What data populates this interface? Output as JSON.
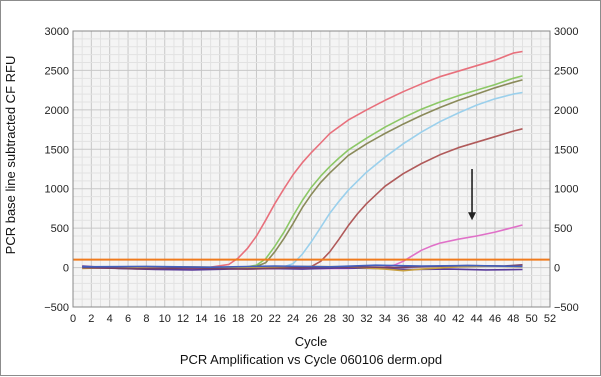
{
  "chart_data": {
    "type": "line",
    "title": "PCR Amplification vs Cycle 060106 derm.opd",
    "xlabel": "Cycle",
    "ylabel": "PCR base line subtracted CF RFU",
    "xlim": [
      0,
      52
    ],
    "ylim": [
      -500,
      3000
    ],
    "x_ticks": [
      0,
      2,
      4,
      6,
      8,
      10,
      12,
      14,
      16,
      18,
      20,
      22,
      24,
      26,
      28,
      30,
      32,
      34,
      36,
      38,
      40,
      42,
      44,
      46,
      48,
      50,
      52
    ],
    "y_ticks": [
      -500,
      0,
      500,
      1000,
      1500,
      2000,
      2500,
      3000
    ],
    "y_axis_right": true,
    "grid": true,
    "threshold": {
      "value": 100,
      "color": "#f07a1c"
    },
    "arrow": {
      "x": 43.5,
      "y_from": 1250,
      "y_to": 600,
      "color": "#222222"
    },
    "colors": {
      "plot_background": "#f4f4f4",
      "grid_major": "#c8c8c8",
      "grid_minor": "#e2e2e2"
    },
    "series": [
      {
        "color": "#e8707c",
        "values": [
          [
            1,
            15
          ],
          [
            4,
            5
          ],
          [
            8,
            0
          ],
          [
            12,
            -5
          ],
          [
            15,
            5
          ],
          [
            17,
            40
          ],
          [
            18,
            120
          ],
          [
            19,
            240
          ],
          [
            20,
            400
          ],
          [
            21,
            600
          ],
          [
            22,
            810
          ],
          [
            23,
            1000
          ],
          [
            24,
            1180
          ],
          [
            25,
            1330
          ],
          [
            26,
            1460
          ],
          [
            27,
            1580
          ],
          [
            28,
            1700
          ],
          [
            30,
            1870
          ],
          [
            32,
            2000
          ],
          [
            34,
            2120
          ],
          [
            36,
            2230
          ],
          [
            38,
            2330
          ],
          [
            40,
            2420
          ],
          [
            42,
            2490
          ],
          [
            44,
            2560
          ],
          [
            46,
            2630
          ],
          [
            48,
            2720
          ],
          [
            49,
            2740
          ]
        ]
      },
      {
        "color": "#8cc866",
        "values": [
          [
            1,
            10
          ],
          [
            6,
            -5
          ],
          [
            12,
            -10
          ],
          [
            16,
            0
          ],
          [
            19,
            10
          ],
          [
            20,
            30
          ],
          [
            21,
            110
          ],
          [
            22,
            270
          ],
          [
            23,
            450
          ],
          [
            24,
            660
          ],
          [
            25,
            850
          ],
          [
            26,
            1020
          ],
          [
            27,
            1160
          ],
          [
            28,
            1280
          ],
          [
            29,
            1390
          ],
          [
            30,
            1490
          ],
          [
            32,
            1640
          ],
          [
            34,
            1780
          ],
          [
            36,
            1900
          ],
          [
            38,
            2010
          ],
          [
            40,
            2100
          ],
          [
            42,
            2180
          ],
          [
            44,
            2250
          ],
          [
            46,
            2320
          ],
          [
            48,
            2400
          ],
          [
            49,
            2430
          ]
        ]
      },
      {
        "color": "#8a8a5a",
        "values": [
          [
            1,
            5
          ],
          [
            8,
            0
          ],
          [
            14,
            -10
          ],
          [
            18,
            0
          ],
          [
            20,
            15
          ],
          [
            21,
            60
          ],
          [
            22,
            200
          ],
          [
            23,
            370
          ],
          [
            24,
            560
          ],
          [
            25,
            760
          ],
          [
            26,
            930
          ],
          [
            27,
            1080
          ],
          [
            28,
            1200
          ],
          [
            30,
            1420
          ],
          [
            32,
            1570
          ],
          [
            34,
            1700
          ],
          [
            36,
            1820
          ],
          [
            38,
            1930
          ],
          [
            40,
            2030
          ],
          [
            42,
            2120
          ],
          [
            44,
            2200
          ],
          [
            46,
            2280
          ],
          [
            48,
            2350
          ],
          [
            49,
            2380
          ]
        ]
      },
      {
        "color": "#9bd0ec",
        "values": [
          [
            1,
            0
          ],
          [
            8,
            -10
          ],
          [
            14,
            -15
          ],
          [
            20,
            -10
          ],
          [
            23,
            10
          ],
          [
            24,
            50
          ],
          [
            25,
            170
          ],
          [
            26,
            330
          ],
          [
            27,
            510
          ],
          [
            28,
            690
          ],
          [
            29,
            840
          ],
          [
            30,
            980
          ],
          [
            32,
            1210
          ],
          [
            34,
            1400
          ],
          [
            36,
            1570
          ],
          [
            38,
            1720
          ],
          [
            40,
            1850
          ],
          [
            42,
            1960
          ],
          [
            44,
            2060
          ],
          [
            46,
            2140
          ],
          [
            48,
            2200
          ],
          [
            49,
            2220
          ]
        ]
      },
      {
        "color": "#b05a5a",
        "values": [
          [
            1,
            0
          ],
          [
            10,
            -10
          ],
          [
            18,
            -15
          ],
          [
            24,
            -10
          ],
          [
            26,
            15
          ],
          [
            27,
            80
          ],
          [
            28,
            200
          ],
          [
            29,
            360
          ],
          [
            30,
            530
          ],
          [
            31,
            680
          ],
          [
            32,
            810
          ],
          [
            34,
            1030
          ],
          [
            36,
            1190
          ],
          [
            38,
            1320
          ],
          [
            40,
            1430
          ],
          [
            42,
            1520
          ],
          [
            44,
            1590
          ],
          [
            46,
            1660
          ],
          [
            48,
            1730
          ],
          [
            49,
            1760
          ]
        ]
      },
      {
        "color": "#e070c8",
        "values": [
          [
            1,
            -5
          ],
          [
            10,
            -10
          ],
          [
            20,
            -15
          ],
          [
            30,
            -10
          ],
          [
            34,
            5
          ],
          [
            35,
            30
          ],
          [
            36,
            80
          ],
          [
            37,
            150
          ],
          [
            38,
            220
          ],
          [
            39,
            270
          ],
          [
            40,
            310
          ],
          [
            42,
            360
          ],
          [
            44,
            400
          ],
          [
            46,
            450
          ],
          [
            48,
            510
          ],
          [
            49,
            540
          ]
        ]
      },
      {
        "color": "#5a3a9a",
        "values": [
          [
            1,
            20
          ],
          [
            5,
            -10
          ],
          [
            9,
            -25
          ],
          [
            13,
            -30
          ],
          [
            17,
            -20
          ],
          [
            21,
            -10
          ],
          [
            25,
            -20
          ],
          [
            29,
            -5
          ],
          [
            33,
            -10
          ],
          [
            37,
            -25
          ],
          [
            41,
            -20
          ],
          [
            45,
            -30
          ],
          [
            49,
            -25
          ]
        ]
      },
      {
        "color": "#c8a040",
        "values": [
          [
            1,
            -10
          ],
          [
            6,
            5
          ],
          [
            12,
            10
          ],
          [
            18,
            0
          ],
          [
            24,
            15
          ],
          [
            30,
            10
          ],
          [
            34,
            -20
          ],
          [
            36,
            -40
          ],
          [
            38,
            -20
          ],
          [
            42,
            10
          ],
          [
            46,
            20
          ],
          [
            49,
            10
          ]
        ]
      },
      {
        "color": "#7a4060",
        "values": [
          [
            1,
            0
          ],
          [
            7,
            -15
          ],
          [
            13,
            -5
          ],
          [
            19,
            -20
          ],
          [
            25,
            0
          ],
          [
            31,
            10
          ],
          [
            35,
            0
          ],
          [
            39,
            15
          ],
          [
            43,
            25
          ],
          [
            47,
            20
          ],
          [
            49,
            35
          ]
        ]
      },
      {
        "color": "#4060c0",
        "values": [
          [
            1,
            10
          ],
          [
            8,
            15
          ],
          [
            15,
            5
          ],
          [
            22,
            20
          ],
          [
            28,
            10
          ],
          [
            33,
            30
          ],
          [
            38,
            20
          ],
          [
            43,
            25
          ],
          [
            49,
            15
          ]
        ]
      }
    ]
  }
}
